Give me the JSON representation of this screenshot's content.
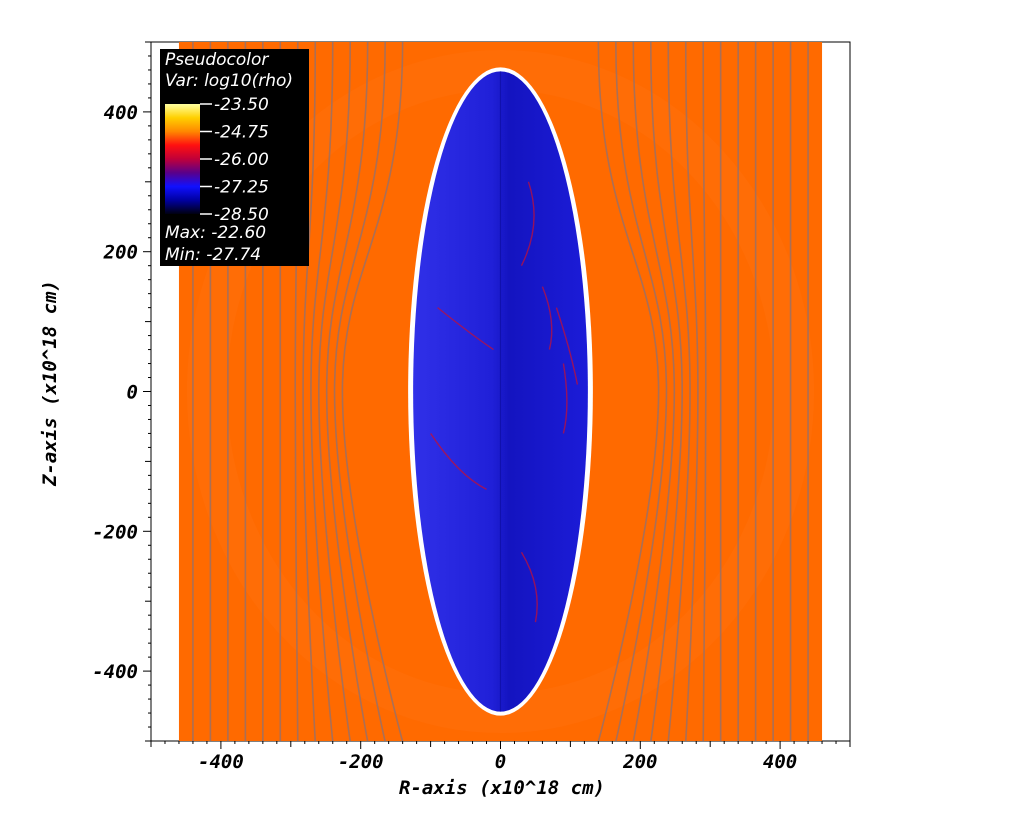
{
  "chart_data": {
    "type": "heatmap",
    "xlabel": "R-axis (x10^18 cm)",
    "ylabel": "Z-axis (x10^18 cm)",
    "xlim": [
      -500,
      500
    ],
    "ylim": [
      -500,
      500
    ],
    "x_ticks": [
      -400,
      -200,
      0,
      200,
      400
    ],
    "y_ticks": [
      400,
      200,
      0,
      -200,
      -400
    ],
    "x_tick_labels": [
      "-400",
      "-200",
      "0",
      "200",
      "400"
    ],
    "y_tick_labels": [
      "400",
      "200",
      "0",
      "-200",
      "-400"
    ],
    "domain_extent": {
      "r": [
        -460,
        460
      ],
      "z": [
        -500,
        500
      ]
    },
    "cavity": {
      "r_center": 0,
      "z_center": 0,
      "r_half_width": 125,
      "z_half_height": 458
    },
    "field_line_r_positions": [
      -440,
      -415,
      -390,
      -365,
      -340,
      -315,
      -290,
      -265,
      -240,
      -215,
      -190,
      -165,
      -140,
      140,
      165,
      190,
      215,
      240,
      265,
      290,
      315,
      340,
      365,
      390,
      415,
      440
    ],
    "legend": {
      "title": "Pseudocolor",
      "var": "Var: log10(rho)",
      "levels": [
        "-23.50",
        "-24.75",
        "-26.00",
        "-27.25",
        "-28.50"
      ],
      "max": "Max: -22.60",
      "min": "Min: -27.74"
    },
    "colors": {
      "ambient": "#ff6a00",
      "cavity": "#1a1ae0",
      "rim": "#ffffff",
      "field_line": "#a07060"
    },
    "colorbar": [
      "#ffffa0",
      "#ffd000",
      "#ff8800",
      "#ff1010",
      "#c0003a",
      "#5a008a",
      "#1010ff",
      "#0000a0",
      "#000010"
    ]
  }
}
